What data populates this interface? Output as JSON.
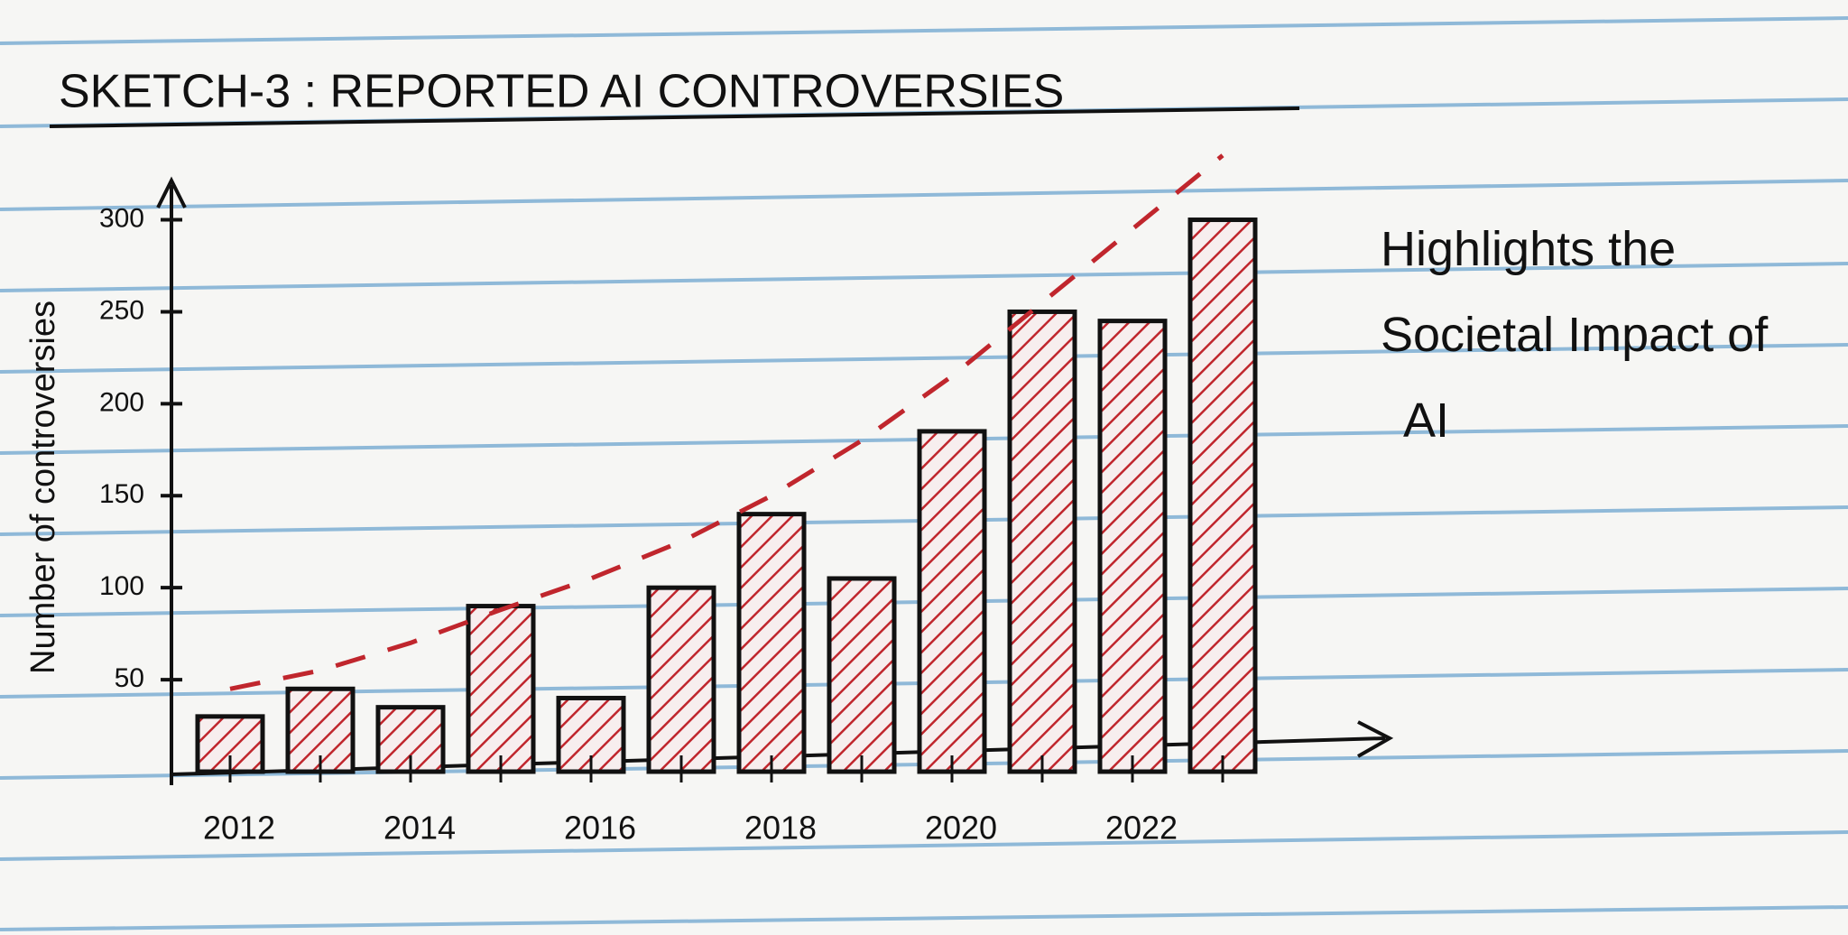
{
  "chart_data": {
    "type": "bar",
    "title": "SKETCH-3 : REPORTED AI CONTROVERSIES",
    "y_label": "Number of controversies",
    "annotation": "Highlights the Societal Impact of AI",
    "categories": [
      "2012",
      null,
      "2014",
      null,
      "2016",
      null,
      "2018",
      null,
      "2020",
      null,
      "2022",
      null
    ],
    "values": [
      30,
      45,
      35,
      90,
      40,
      100,
      140,
      105,
      185,
      250,
      245,
      300
    ],
    "color": "#c0262d",
    "trend": {
      "color": "#c0262d",
      "dashed": true,
      "values": [
        45,
        55,
        70,
        88,
        105,
        125,
        150,
        180,
        215,
        255,
        295,
        335
      ]
    },
    "ylim": [
      0,
      340
    ],
    "yticks": [
      50,
      100,
      150,
      200,
      250,
      300
    ],
    "grid": false
  }
}
